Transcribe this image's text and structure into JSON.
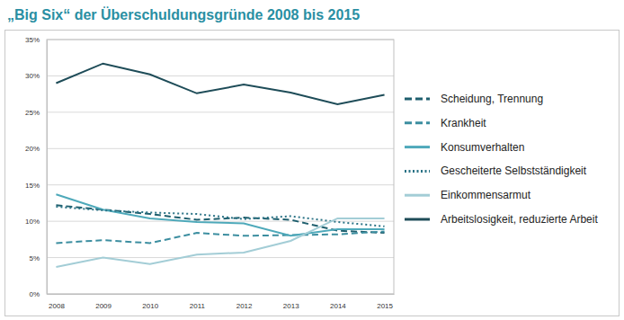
{
  "chart_data": {
    "type": "line",
    "title": "„Big Six“ der Überschuldungsgründe 2008 bis 2015",
    "categories": [
      "2008",
      "2009",
      "2010",
      "2011",
      "2012",
      "2013",
      "2014",
      "2015"
    ],
    "series": [
      {
        "name": "Scheidung, Trennung",
        "color": "#1f5f6e",
        "line_style": "dashed",
        "values": [
          12.2,
          11.6,
          11.0,
          10.2,
          10.5,
          10.2,
          8.7,
          8.4
        ]
      },
      {
        "name": "Krankheit",
        "color": "#3c8ea0",
        "line_style": "dashed",
        "values": [
          7.0,
          7.4,
          7.0,
          8.4,
          8.0,
          8.1,
          8.2,
          8.6
        ]
      },
      {
        "name": "Konsumverhalten",
        "color": "#4ea9ba",
        "line_style": "solid",
        "values": [
          13.7,
          11.6,
          10.4,
          9.9,
          9.7,
          8.0,
          8.9,
          8.9
        ]
      },
      {
        "name": "Gescheiterte Selbstständigkeit",
        "color": "#2b7386",
        "line_style": "dotted",
        "values": [
          12.0,
          11.5,
          11.2,
          11.0,
          10.3,
          10.7,
          9.9,
          9.3
        ]
      },
      {
        "name": "Einkommensarmut",
        "color": "#a3cdd6",
        "line_style": "solid",
        "values": [
          3.7,
          5.0,
          4.1,
          5.4,
          5.7,
          7.3,
          10.4,
          10.4
        ]
      },
      {
        "name": "Arbeitslosigkeit, reduzierte Arbeit",
        "color": "#1e4c58",
        "line_style": "solid",
        "values": [
          29.0,
          31.7,
          30.2,
          27.6,
          28.8,
          27.7,
          26.1,
          27.4
        ]
      }
    ],
    "ylim": [
      0,
      35
    ],
    "yticks": [
      {
        "value": 0,
        "label": "0%"
      },
      {
        "value": 5,
        "label": "5%"
      },
      {
        "value": 10,
        "label": "10%"
      },
      {
        "value": 15,
        "label": "15%"
      },
      {
        "value": 20,
        "label": "20%"
      },
      {
        "value": 25,
        "label": "25%"
      },
      {
        "value": 30,
        "label": "30%"
      },
      {
        "value": 35,
        "label": "35%"
      }
    ],
    "grid": true,
    "legend": "right"
  }
}
